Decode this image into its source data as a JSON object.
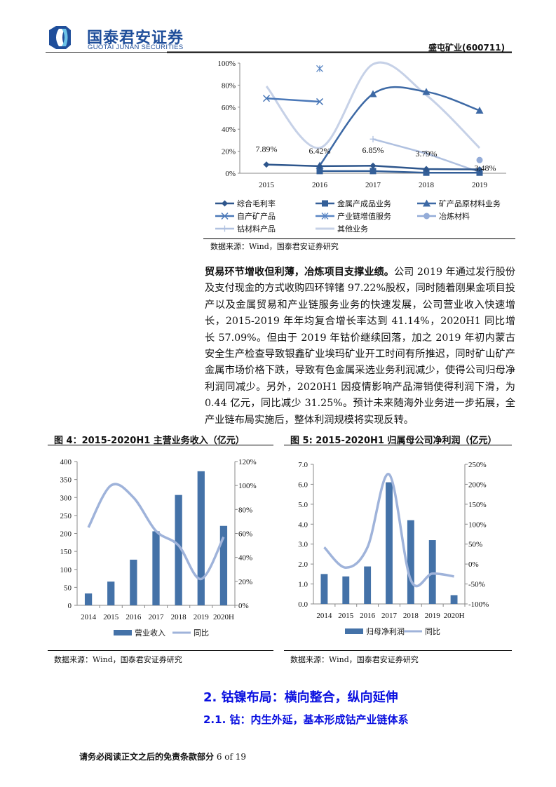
{
  "header": {
    "logo_cn": "国泰君安证券",
    "logo_en": "GUOTAI JUNAN SECURITIES",
    "stock": "盛屯矿业(600711)"
  },
  "colors": {
    "brand": "#1f4e9a",
    "heading": "#0a10e0",
    "bar": "#4472a8",
    "yoy_line": "#9fb3da"
  },
  "top_chart_source": "数据来源：Wind，国泰君安证券研究",
  "paragraph": {
    "lead": "贸易环节增收但利薄，冶炼项目支撑业绩。",
    "body": "公司 2019 年通过发行股份及支付现金的方式收购四环锌锗 97.22%股权，同时随着刚果金项目投产以及金属贸易和产业链服务业务的快速发展，公司营业收入快速增长，2015-2019 年年均复合增长率达到 41.14%，2020H1 同比增长 57.09%。但由于 2019 年钴价继续回落，加之 2019 年初内蒙古安全生产检查导致银鑫矿业埃玛矿业开工时间有所推迟，同时矿山矿产金属市场价格下跌，导致有色金属采选业务利润减少，使得公司归母净利润同减少。另外，2020H1 因疫情影响产品滞销使得利润下滑，为 0.44 亿元，同比减少 31.25%。预计未来随海外业务进一步拓展，全产业链布局实施后，整体利润规模将实现反转。"
  },
  "fig4": {
    "title": "图 4：2015-2020H1 主营业务收入（亿元）",
    "source": "数据来源：Wind，国泰君安证券研究"
  },
  "fig5": {
    "title": "图 5: 2015-2020H1 归属母公司净利润（亿元）",
    "source": "数据来源：Wind，国泰君安证券研究"
  },
  "section": {
    "h2": "2. 钴镍布局：横向整合，纵向延伸",
    "h3": "2.1. 钴：内生外延，基本形成钴产业链体系"
  },
  "footer": {
    "disclaimer": "请务必阅读正文之后的免责条款部分",
    "page": "6 of 19"
  },
  "chart_data": [
    {
      "type": "line",
      "categories": [
        "2015",
        "2016",
        "2017",
        "2018",
        "2019"
      ],
      "yticks": [
        "0%",
        "20%",
        "40%",
        "60%",
        "80%",
        "100%"
      ],
      "ylim": [
        0,
        100
      ],
      "legend": "bottom",
      "series": [
        {
          "name": "综合毛利率",
          "values": [
            7.89,
            6.42,
            6.85,
            3.79,
            3.48
          ],
          "labels": [
            "7.89%",
            "6.42%",
            "6.85%",
            "3.79%",
            "3.48%"
          ],
          "marker": "diamond",
          "color": "#2e568c",
          "smooth": false
        },
        {
          "name": "金属产成品业务",
          "values": [
            null,
            2,
            2,
            0.5,
            0.5
          ],
          "marker": "square",
          "color": "#345f98",
          "smooth": false
        },
        {
          "name": "矿产品原材料业务",
          "values": [
            null,
            7,
            72,
            74,
            57
          ],
          "marker": "triangle",
          "color": "#3d69a5",
          "smooth": true
        },
        {
          "name": "自产矿产品",
          "values": [
            68,
            65,
            null,
            null,
            null
          ],
          "marker": "x",
          "color": "#4a78b8",
          "smooth": false
        },
        {
          "name": "产业链增值服务",
          "values": [
            null,
            95,
            null,
            null,
            null
          ],
          "marker": "asterisk",
          "color": "#5a86c4",
          "smooth": false
        },
        {
          "name": "冶炼材料",
          "values": [
            null,
            null,
            null,
            null,
            12
          ],
          "marker": "circle",
          "color": "#94acd8",
          "smooth": false
        },
        {
          "name": "钴材料产品",
          "values": [
            null,
            null,
            31,
            18,
            1
          ],
          "marker": "plus",
          "color": "#b0c1e0",
          "smooth": false
        },
        {
          "name": "其他业务",
          "values": [
            79,
            23,
            99,
            71,
            23
          ],
          "marker": "none",
          "color": "#c6d1e7",
          "smooth": true
        }
      ]
    },
    {
      "type": "bar",
      "title": "图 4：2015-2020H1 主营业务收入（亿元）",
      "categories": [
        "2014",
        "2015",
        "2016",
        "2017",
        "2018",
        "2019",
        "2020H"
      ],
      "ylim": [
        0,
        400
      ],
      "yticks": [
        "0",
        "50",
        "100",
        "150",
        "200",
        "250",
        "300",
        "350",
        "400"
      ],
      "y2lim": [
        0,
        120
      ],
      "y2ticks": [
        "0%",
        "20%",
        "40%",
        "60%",
        "80%",
        "100%",
        "120%"
      ],
      "legend": "bottom",
      "series": [
        {
          "name": "营业收入",
          "type": "bar",
          "axis": "left",
          "values": [
            33,
            66,
            127,
            206,
            307,
            373,
            221
          ]
        },
        {
          "name": "同比",
          "type": "line",
          "axis": "right",
          "values": [
            65,
            100,
            90,
            62,
            50,
            22,
            57
          ]
        }
      ]
    },
    {
      "type": "bar",
      "title": "图 5: 2015-2020H1 归属母公司净利润（亿元）",
      "categories": [
        "2014",
        "2015",
        "2016",
        "2017",
        "2018",
        "2019",
        "2020H"
      ],
      "ylim": [
        0,
        7
      ],
      "yticks": [
        "0.0",
        "1.0",
        "2.0",
        "3.0",
        "4.0",
        "5.0",
        "6.0",
        "7.0"
      ],
      "y2lim": [
        -100,
        250
      ],
      "y2ticks": [
        "-100%",
        "-50%",
        "0%",
        "50%",
        "100%",
        "150%",
        "200%",
        "250%"
      ],
      "legend": "bottom",
      "series": [
        {
          "name": "归母净利润",
          "type": "bar",
          "axis": "left",
          "values": [
            1.5,
            1.38,
            1.88,
            6.1,
            4.2,
            3.2,
            0.44
          ]
        },
        {
          "name": "同比",
          "type": "line",
          "axis": "right",
          "values": [
            42,
            -9,
            42,
            225,
            -40,
            -24,
            -31
          ]
        }
      ]
    }
  ]
}
